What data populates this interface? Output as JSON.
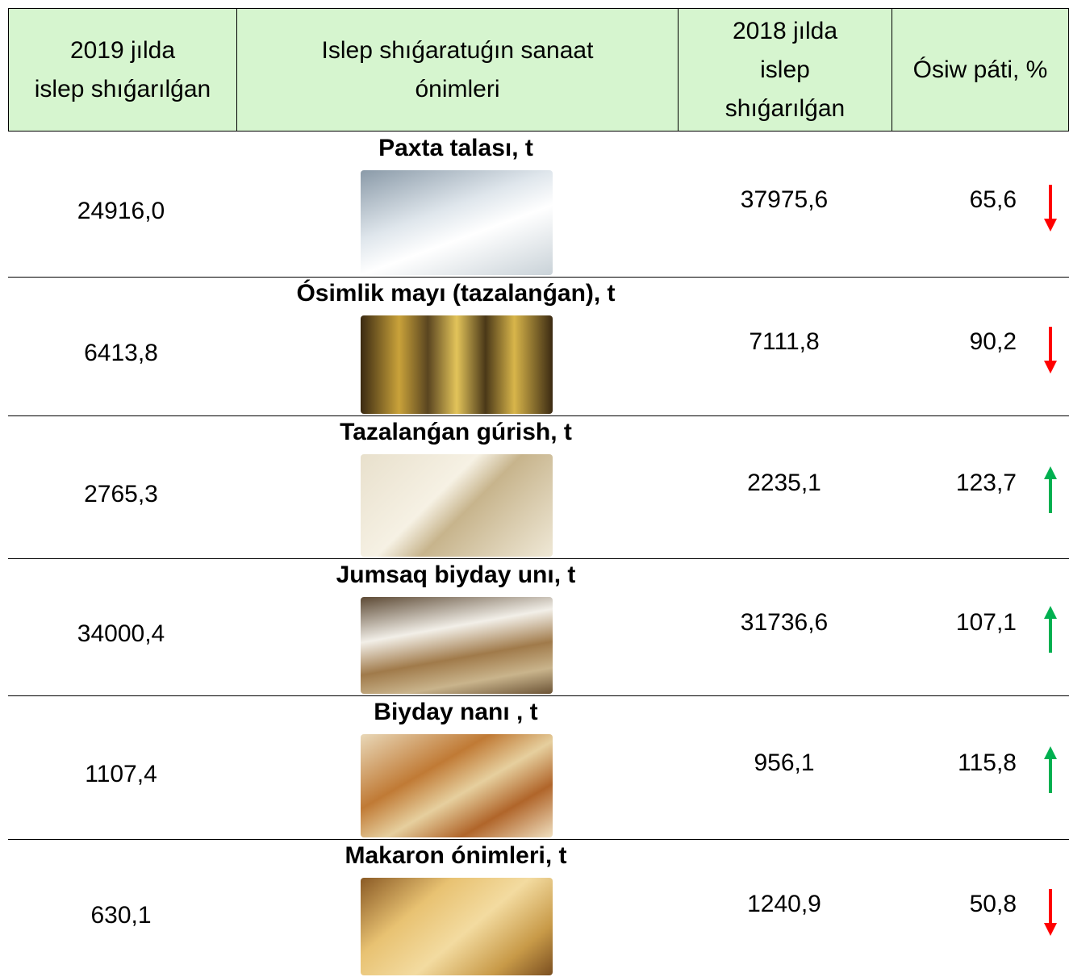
{
  "table": {
    "header": [
      [
        "2019 jılda",
        "islep shıǵarılǵan"
      ],
      [
        "Islep shıǵaratuǵın sanaat",
        "ónimleri"
      ],
      [
        "2018 jılda",
        "islep",
        "shıǵarılǵan"
      ],
      [
        "Ósiw páti, %"
      ]
    ],
    "rows": [
      {
        "y2019": "24916,0",
        "product": "Paxta talası, t",
        "y2018": "37975,6",
        "growth": "65,6"
      },
      {
        "y2019": "6413,8",
        "product": "Ósimlik mayı (tazalanǵan), t",
        "y2018": "7111,8",
        "growth": "90,2"
      },
      {
        "y2019": "2765,3",
        "product": "Tazalanǵan gúrish, t",
        "y2018": "2235,1",
        "growth": "123,7"
      },
      {
        "y2019": "34000,4",
        "product": "Jumsaq biyday unı, t",
        "y2018": "31736,6",
        "growth": "107,1"
      },
      {
        "y2019": "1107,4",
        "product": "Biyday nanı , t",
        "y2018": "956,1",
        "growth": "115,8"
      },
      {
        "y2019": "630,1",
        "product": "Makaron ónimleri, t",
        "y2018": "1240,9",
        "growth": "50,8"
      }
    ]
  }
}
